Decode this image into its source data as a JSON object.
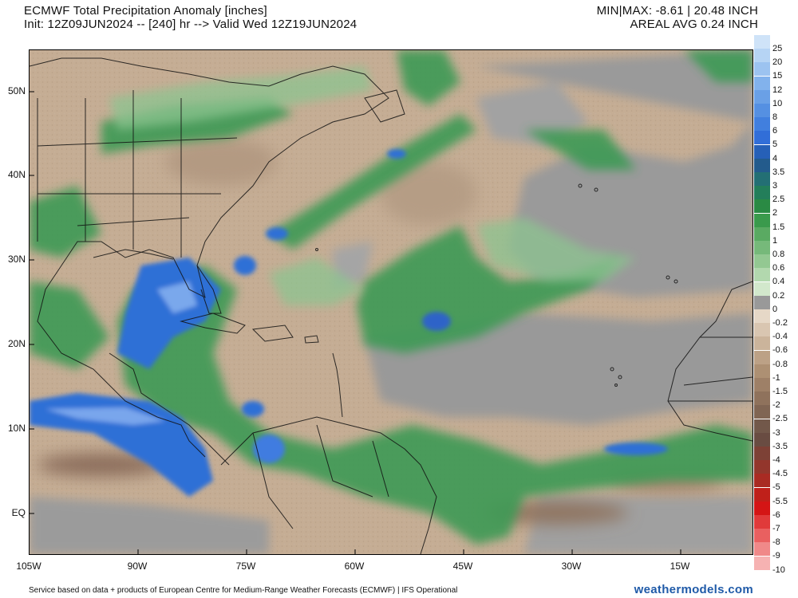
{
  "header": {
    "title": "ECMWF Total Precipitation Anomaly [inches]",
    "init_line": "Init: 12Z09JUN2024 -- [240] hr --> Valid Wed 12Z19JUN2024",
    "minmax": "MIN|MAX: -8.61 | 20.48 INCH",
    "areal_avg": "AREAL AVG 0.24 INCH"
  },
  "axes": {
    "lat_labels": [
      "50N",
      "40N",
      "30N",
      "20N",
      "10N",
      "EQ"
    ],
    "lon_labels": [
      "105W",
      "90W",
      "75W",
      "60W",
      "45W",
      "30W",
      "15W"
    ]
  },
  "colorbar": {
    "labels": [
      "25",
      "20",
      "15",
      "12",
      "10",
      "8",
      "6",
      "5",
      "4",
      "3.5",
      "3",
      "2.5",
      "2",
      "1.5",
      "1",
      "0.8",
      "0.6",
      "0.4",
      "0.2",
      "0",
      "-0.2",
      "-0.4",
      "-0.6",
      "-0.8",
      "-1",
      "-1.5",
      "-2",
      "-2.5",
      "-3",
      "-3.5",
      "-4",
      "-4.5",
      "-5",
      "-5.5",
      "-6",
      "-7",
      "-8",
      "-9",
      "-10"
    ],
    "colors": [
      "#cfe3f8",
      "#b6d4f4",
      "#9cc3f0",
      "#82b2ec",
      "#6aa0e6",
      "#5590e2",
      "#417fde",
      "#316ed8",
      "#2660b7",
      "#235b8c",
      "#236f74",
      "#237e5a",
      "#2a8a44",
      "#3a9a4c",
      "#5aaa62",
      "#76b97a",
      "#93c892",
      "#b2d8ae",
      "#d2e8cc",
      "#999999",
      "#e6d8c7",
      "#d9c6b1",
      "#cbb49b",
      "#bca186",
      "#ad9073",
      "#9e8067",
      "#8f725c",
      "#806553",
      "#72584a",
      "#694c42",
      "#7d4136",
      "#93362c",
      "#a92b23",
      "#bf201a",
      "#d41515",
      "#e03a3a",
      "#e96060",
      "#f08989",
      "#f6b2b2"
    ]
  },
  "footer": {
    "credit": "Service based on data + products of European Centre for Medium-Range Weather Forecasts (ECMWF) | IFS Operational",
    "brand": "weathermodels.com"
  }
}
